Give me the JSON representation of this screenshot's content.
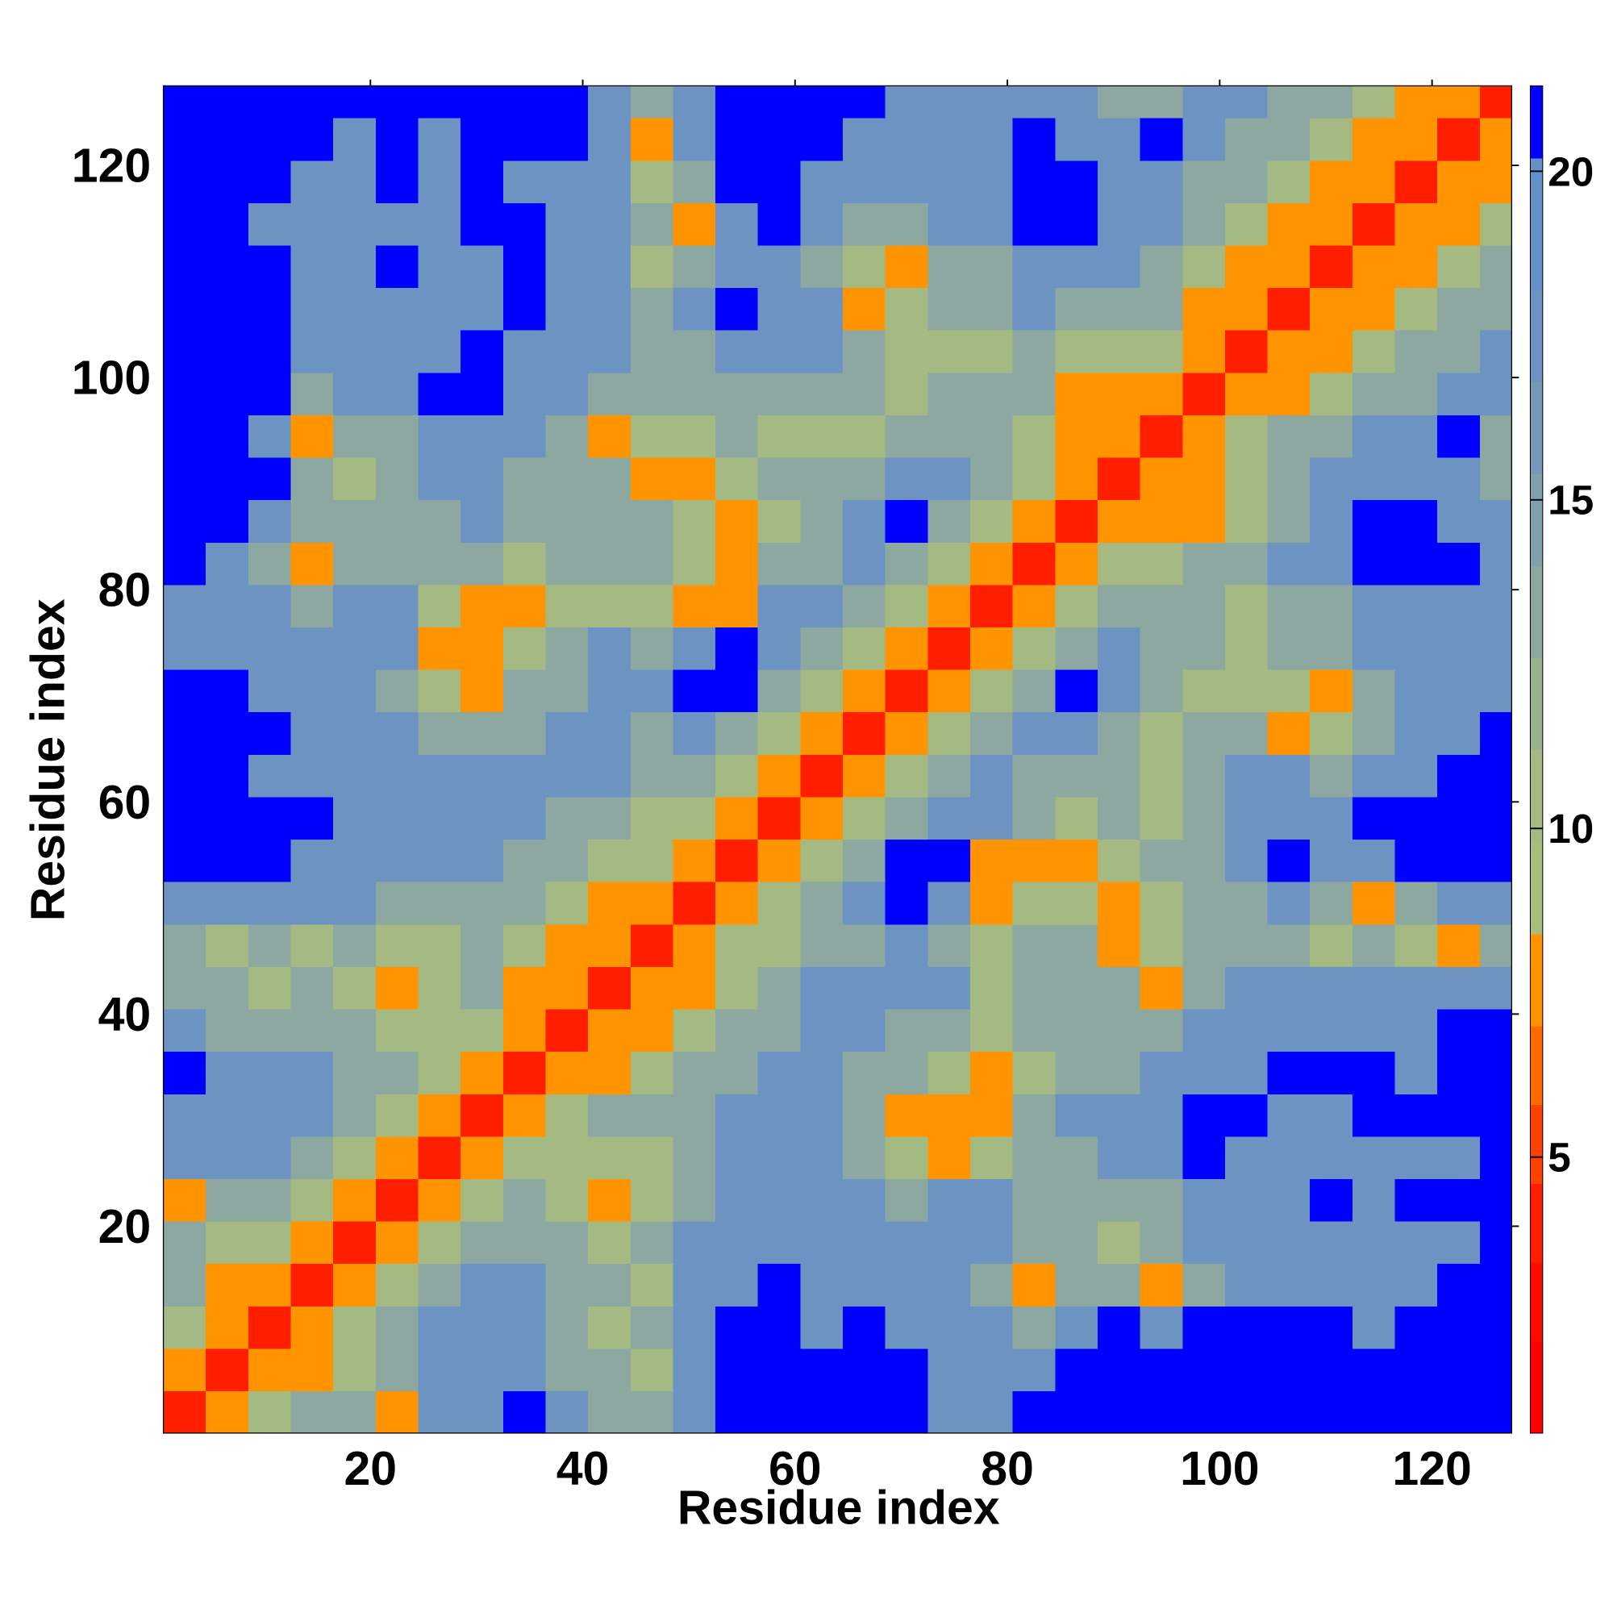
{
  "chart_data": {
    "type": "heatmap",
    "x_label": "Residue index",
    "y_label": "Residue index",
    "xlim": [
      0.5,
      127.5
    ],
    "ylim": [
      0.5,
      127.5
    ],
    "xticks": [
      20,
      40,
      60,
      80,
      100,
      120
    ],
    "yticks": [
      20,
      40,
      60,
      80,
      100,
      120
    ],
    "bins": [
      0.5,
      4.5,
      8.5,
      12.5,
      16.5,
      20.5,
      24.5,
      28.5,
      32.5,
      36.5,
      40.5,
      44.5,
      48.5,
      52.5,
      56.5,
      60.5,
      64.5,
      68.5,
      72.5,
      76.5,
      80.5,
      84.5,
      88.5,
      92.5,
      96.5,
      100.5,
      104.5,
      108.5,
      112.5,
      116.5,
      120.5,
      124.5,
      127.5
    ],
    "levels": [
      0.8,
      2.2,
      3.4,
      4.6,
      5.8,
      7,
      8.4,
      9.8,
      11.2,
      12.6,
      14,
      15.4,
      16.8,
      18.2,
      20.2,
      21.3
    ],
    "colors": [
      "#ff0000",
      "#ff0a00",
      "#ff1e00",
      "#ff4000",
      "#ff6a00",
      "#ff9400",
      "#a9bd7d",
      "#a4ba82",
      "#98b28e",
      "#8ca8a0",
      "#82a0ac",
      "#7699b8",
      "#6c93c2",
      "#6490c8",
      "#0000ff"
    ],
    "colorbar_ticks": [
      5,
      10,
      15,
      20
    ],
    "values": [
      [
        4,
        7,
        10,
        13,
        13,
        7,
        17,
        17,
        21,
        17,
        13,
        13,
        17,
        21,
        21,
        21,
        21,
        21,
        17,
        17,
        21,
        21,
        21,
        21,
        21,
        21,
        21,
        21,
        21,
        21,
        21,
        21
      ],
      [
        7,
        4,
        7,
        7,
        10,
        13,
        17,
        17,
        17,
        13,
        13,
        10,
        17,
        21,
        21,
        21,
        21,
        21,
        17,
        17,
        17,
        21,
        21,
        21,
        21,
        21,
        21,
        21,
        21,
        21,
        21,
        21
      ],
      [
        10,
        7,
        4,
        7,
        10,
        13,
        17,
        17,
        17,
        13,
        10,
        13,
        17,
        21,
        21,
        17,
        21,
        17,
        17,
        17,
        13,
        17,
        21,
        17,
        21,
        21,
        21,
        21,
        17,
        21,
        21,
        21
      ],
      [
        13,
        7,
        7,
        4,
        7,
        10,
        13,
        17,
        17,
        13,
        13,
        10,
        17,
        17,
        21,
        17,
        17,
        17,
        17,
        13,
        7,
        13,
        13,
        7,
        13,
        17,
        17,
        17,
        17,
        17,
        21,
        21
      ],
      [
        13,
        10,
        10,
        7,
        4,
        7,
        10,
        13,
        13,
        13,
        10,
        13,
        17,
        17,
        17,
        17,
        17,
        17,
        17,
        17,
        13,
        13,
        10,
        13,
        17,
        17,
        17,
        17,
        17,
        17,
        17,
        21
      ],
      [
        7,
        13,
        13,
        10,
        7,
        4,
        7,
        10,
        13,
        10,
        7,
        10,
        13,
        17,
        17,
        17,
        17,
        13,
        17,
        17,
        13,
        13,
        13,
        13,
        17,
        17,
        17,
        21,
        17,
        21,
        21,
        21
      ],
      [
        17,
        17,
        17,
        13,
        10,
        7,
        4,
        7,
        10,
        10,
        10,
        10,
        13,
        17,
        17,
        17,
        13,
        10,
        7,
        10,
        13,
        13,
        17,
        17,
        21,
        17,
        17,
        17,
        17,
        17,
        17,
        21
      ],
      [
        17,
        17,
        17,
        17,
        13,
        10,
        7,
        4,
        7,
        10,
        13,
        13,
        13,
        17,
        17,
        17,
        13,
        7,
        7,
        7,
        13,
        17,
        17,
        17,
        21,
        21,
        17,
        17,
        21,
        21,
        21,
        21
      ],
      [
        21,
        17,
        17,
        17,
        13,
        13,
        10,
        7,
        4,
        7,
        7,
        10,
        13,
        13,
        17,
        17,
        13,
        13,
        10,
        7,
        10,
        13,
        13,
        17,
        17,
        17,
        21,
        21,
        21,
        17,
        21,
        21
      ],
      [
        17,
        13,
        13,
        13,
        13,
        10,
        10,
        10,
        7,
        4,
        7,
        7,
        10,
        13,
        13,
        17,
        17,
        13,
        13,
        10,
        13,
        13,
        13,
        13,
        17,
        17,
        17,
        17,
        17,
        17,
        21,
        21
      ],
      [
        13,
        13,
        10,
        13,
        10,
        7,
        10,
        13,
        7,
        7,
        4,
        7,
        7,
        10,
        13,
        17,
        17,
        17,
        17,
        10,
        13,
        13,
        13,
        7,
        13,
        17,
        17,
        17,
        17,
        17,
        17,
        17
      ],
      [
        13,
        10,
        13,
        10,
        13,
        10,
        10,
        13,
        10,
        7,
        7,
        4,
        7,
        10,
        10,
        13,
        13,
        17,
        13,
        10,
        13,
        13,
        7,
        10,
        13,
        13,
        13,
        10,
        13,
        10,
        7,
        13
      ],
      [
        17,
        17,
        17,
        17,
        17,
        13,
        13,
        13,
        13,
        10,
        7,
        7,
        4,
        7,
        10,
        13,
        17,
        21,
        17,
        7,
        10,
        10,
        7,
        10,
        13,
        13,
        17,
        13,
        7,
        13,
        17,
        17
      ],
      [
        21,
        21,
        21,
        17,
        17,
        17,
        17,
        17,
        13,
        13,
        10,
        10,
        7,
        4,
        7,
        10,
        13,
        21,
        21,
        7,
        7,
        7,
        10,
        13,
        13,
        17,
        21,
        17,
        17,
        21,
        21,
        21
      ],
      [
        21,
        21,
        21,
        21,
        17,
        17,
        17,
        17,
        17,
        13,
        13,
        10,
        10,
        7,
        4,
        7,
        10,
        13,
        17,
        17,
        13,
        10,
        13,
        10,
        13,
        17,
        17,
        17,
        21,
        21,
        21,
        21
      ],
      [
        21,
        21,
        17,
        17,
        17,
        17,
        17,
        17,
        17,
        17,
        17,
        13,
        13,
        10,
        7,
        4,
        7,
        10,
        13,
        17,
        13,
        13,
        13,
        10,
        13,
        17,
        17,
        13,
        17,
        17,
        21,
        21
      ],
      [
        21,
        21,
        21,
        17,
        17,
        17,
        13,
        13,
        13,
        17,
        17,
        13,
        17,
        13,
        10,
        7,
        4,
        7,
        10,
        13,
        17,
        17,
        13,
        10,
        13,
        13,
        7,
        10,
        13,
        17,
        17,
        21
      ],
      [
        21,
        21,
        17,
        17,
        17,
        13,
        10,
        7,
        13,
        13,
        17,
        17,
        21,
        21,
        13,
        10,
        7,
        4,
        7,
        10,
        13,
        21,
        17,
        13,
        10,
        10,
        10,
        7,
        13,
        17,
        17,
        17
      ],
      [
        17,
        17,
        17,
        17,
        17,
        17,
        7,
        7,
        10,
        13,
        17,
        13,
        17,
        21,
        17,
        13,
        10,
        7,
        4,
        7,
        10,
        13,
        17,
        13,
        13,
        10,
        13,
        13,
        17,
        17,
        17,
        17
      ],
      [
        17,
        17,
        17,
        13,
        17,
        17,
        10,
        7,
        7,
        10,
        10,
        10,
        7,
        7,
        17,
        17,
        13,
        10,
        7,
        4,
        7,
        10,
        13,
        13,
        13,
        10,
        13,
        13,
        17,
        17,
        17,
        17
      ],
      [
        21,
        17,
        13,
        7,
        13,
        13,
        13,
        13,
        10,
        13,
        13,
        13,
        10,
        7,
        13,
        13,
        17,
        13,
        10,
        7,
        4,
        7,
        10,
        10,
        13,
        13,
        17,
        17,
        21,
        21,
        21,
        17
      ],
      [
        21,
        21,
        17,
        13,
        13,
        13,
        13,
        17,
        13,
        13,
        13,
        13,
        10,
        7,
        10,
        13,
        17,
        21,
        13,
        10,
        7,
        4,
        7,
        7,
        7,
        10,
        13,
        17,
        21,
        21,
        17,
        17
      ],
      [
        21,
        21,
        21,
        13,
        10,
        13,
        17,
        17,
        13,
        13,
        13,
        7,
        7,
        10,
        13,
        13,
        13,
        17,
        17,
        13,
        10,
        7,
        4,
        7,
        7,
        10,
        13,
        17,
        17,
        17,
        17,
        13
      ],
      [
        21,
        21,
        17,
        7,
        13,
        13,
        17,
        17,
        17,
        13,
        7,
        10,
        10,
        13,
        10,
        10,
        10,
        13,
        13,
        13,
        10,
        7,
        7,
        4,
        7,
        10,
        13,
        13,
        17,
        17,
        21,
        13
      ],
      [
        21,
        21,
        21,
        13,
        17,
        17,
        21,
        21,
        17,
        17,
        13,
        13,
        13,
        13,
        13,
        13,
        13,
        10,
        13,
        13,
        13,
        7,
        7,
        7,
        4,
        7,
        7,
        10,
        13,
        13,
        17,
        17
      ],
      [
        21,
        21,
        21,
        17,
        17,
        17,
        17,
        21,
        17,
        17,
        17,
        13,
        13,
        17,
        17,
        17,
        13,
        10,
        10,
        10,
        13,
        10,
        10,
        10,
        7,
        4,
        7,
        7,
        10,
        13,
        13,
        17
      ],
      [
        21,
        21,
        21,
        17,
        17,
        17,
        17,
        17,
        21,
        17,
        17,
        13,
        17,
        21,
        17,
        17,
        7,
        10,
        13,
        13,
        17,
        13,
        13,
        13,
        7,
        7,
        4,
        7,
        7,
        10,
        13,
        13
      ],
      [
        21,
        21,
        21,
        17,
        17,
        21,
        17,
        17,
        21,
        17,
        17,
        10,
        13,
        17,
        17,
        13,
        10,
        7,
        13,
        13,
        17,
        17,
        17,
        13,
        10,
        7,
        7,
        4,
        7,
        7,
        10,
        13
      ],
      [
        21,
        21,
        17,
        17,
        17,
        17,
        17,
        21,
        21,
        17,
        17,
        13,
        7,
        17,
        21,
        17,
        13,
        13,
        17,
        17,
        21,
        21,
        17,
        17,
        13,
        10,
        7,
        7,
        4,
        7,
        7,
        10
      ],
      [
        21,
        21,
        21,
        17,
        17,
        21,
        17,
        21,
        17,
        17,
        17,
        10,
        13,
        21,
        21,
        17,
        17,
        17,
        17,
        17,
        21,
        21,
        17,
        17,
        13,
        13,
        10,
        7,
        7,
        4,
        7,
        7
      ],
      [
        21,
        21,
        21,
        21,
        17,
        21,
        17,
        21,
        21,
        21,
        17,
        7,
        17,
        21,
        21,
        21,
        17,
        17,
        17,
        17,
        21,
        17,
        17,
        21,
        17,
        13,
        13,
        10,
        7,
        7,
        4,
        7
      ],
      [
        21,
        21,
        21,
        21,
        21,
        21,
        21,
        21,
        21,
        21,
        17,
        13,
        17,
        21,
        21,
        21,
        21,
        17,
        17,
        17,
        17,
        17,
        13,
        13,
        17,
        17,
        13,
        13,
        10,
        7,
        7,
        4
      ]
    ]
  }
}
